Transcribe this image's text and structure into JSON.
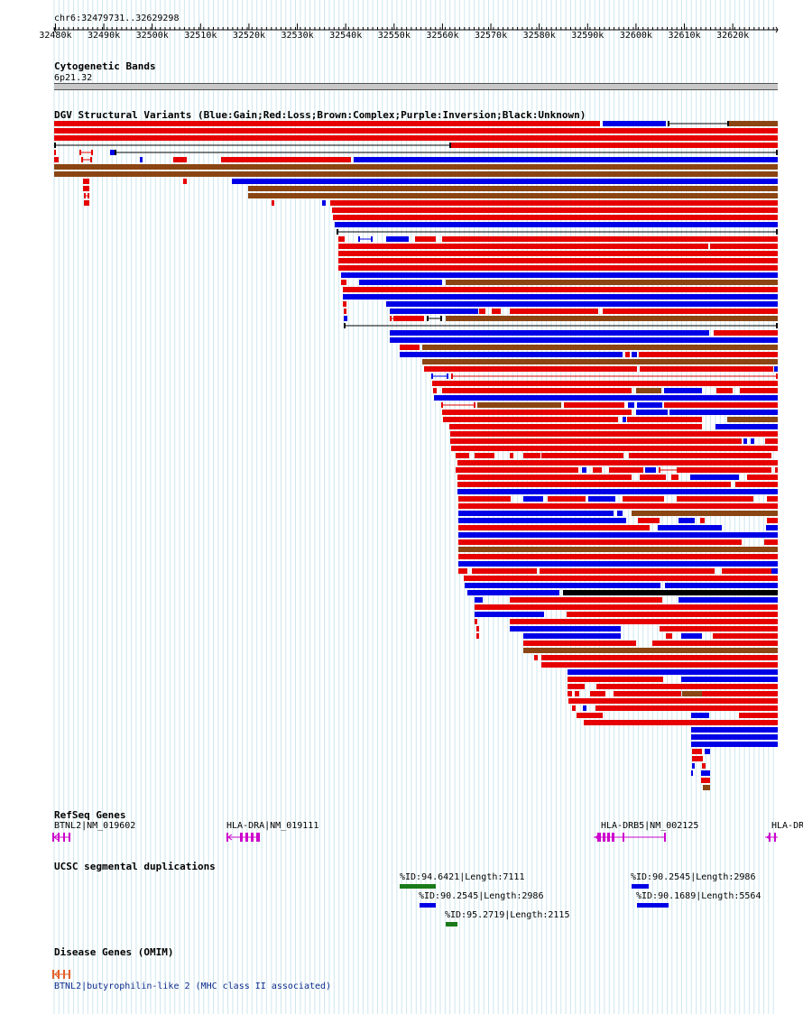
{
  "header": {
    "position": "chr6:32479731..32629298"
  },
  "ruler": {
    "start": 32479731,
    "end": 32629298,
    "labels": [
      "32480k",
      "32490k",
      "32500k",
      "32510k",
      "32520k",
      "32530k",
      "32540k",
      "32550k",
      "32560k",
      "32570k",
      "32580k",
      "32590k",
      "32600k",
      "32610k",
      "32620k"
    ]
  },
  "cytobands": {
    "title": "Cytogenetic Bands",
    "band": "6p21.32"
  },
  "dgv": {
    "title": "DGV Structural Variants (Blue:Gain;Red:Loss;Brown:Complex;Purple:Inversion;Black:Unknown)",
    "colors": {
      "gain": "#0000e6",
      "loss": "#e60000",
      "complex": "#8b4513",
      "unknown": "#000000"
    }
  },
  "refseq": {
    "title": "RefSeq Genes",
    "genes": [
      "BTNL2|NM_019602",
      "HLA-DRA|NM_019111",
      "HLA-DRB5|NM_002125",
      "HLA-DR"
    ],
    "color": "#cc00cc"
  },
  "segdups": {
    "title": "UCSC segmental duplications",
    "items": [
      "%ID:94.6421|Length:7111",
      "%ID:90.2545|Length:2986",
      "%ID:95.2719|Length:2115",
      "%ID:90.2545|Length:2986",
      "%ID:90.1689|Length:5564"
    ]
  },
  "omim": {
    "title": "Disease Genes (OMIM)",
    "gene": "BTNL2|butyrophilin-like 2 (MHC class II associated)",
    "color": "#e0602a"
  }
}
